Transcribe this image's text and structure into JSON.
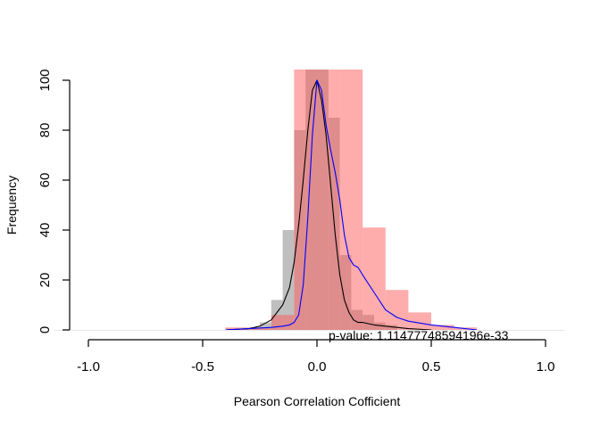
{
  "chart_data": {
    "type": "histogram",
    "title": "",
    "xlabel": "Pearson Correlation Cofficient",
    "ylabel": "Frequency",
    "xlim": [
      -1.0,
      1.0
    ],
    "ylim": [
      0,
      100
    ],
    "x_ticks": [
      "-1.0",
      "-0.5",
      "0.0",
      "0.5",
      "1.0"
    ],
    "y_ticks": [
      "0",
      "20",
      "40",
      "60",
      "80",
      "100"
    ],
    "grid": false,
    "annotation": "p-value: 1.11477748594196e-33",
    "series": [
      {
        "color": "#bebebe",
        "bin_width": 0.05,
        "bins": [
          {
            "start": -0.4,
            "count": 0.5
          },
          {
            "start": -0.35,
            "count": 0.5
          },
          {
            "start": -0.3,
            "count": 0.5
          },
          {
            "start": -0.25,
            "count": 3
          },
          {
            "start": -0.2,
            "count": 12
          },
          {
            "start": -0.15,
            "count": 40
          },
          {
            "start": -0.1,
            "count": 80
          },
          {
            "start": -0.05,
            "count": 106
          },
          {
            "start": 0.0,
            "count": 108
          },
          {
            "start": 0.05,
            "count": 85
          },
          {
            "start": 0.1,
            "count": 30
          },
          {
            "start": 0.15,
            "count": 8
          },
          {
            "start": 0.2,
            "count": 6
          },
          {
            "start": 0.25,
            "count": 3
          },
          {
            "start": 0.3,
            "count": 2
          }
        ]
      },
      {
        "color": "#ff5a5a",
        "bin_width": 0.1,
        "bins": [
          {
            "start": -0.4,
            "count": 1
          },
          {
            "start": -0.3,
            "count": 1
          },
          {
            "start": -0.2,
            "count": 6
          },
          {
            "start": -0.1,
            "count": 105
          },
          {
            "start": 0.0,
            "count": 105
          },
          {
            "start": 0.1,
            "count": 105
          },
          {
            "start": 0.2,
            "count": 41
          },
          {
            "start": 0.3,
            "count": 16
          },
          {
            "start": 0.4,
            "count": 7
          },
          {
            "start": 0.5,
            "count": 2
          },
          {
            "start": 0.6,
            "count": 1
          }
        ]
      }
    ],
    "density_curves": [
      {
        "color": "#000000",
        "x": [
          -0.4,
          -0.3,
          -0.25,
          -0.2,
          -0.15,
          -0.12,
          -0.1,
          -0.08,
          -0.06,
          -0.04,
          -0.02,
          0.0,
          0.02,
          0.04,
          0.06,
          0.08,
          0.1,
          0.12,
          0.14,
          0.16,
          0.18,
          0.2,
          0.25,
          0.3,
          0.35,
          0.4,
          0.5
        ],
        "y": [
          0,
          0.5,
          1.5,
          4,
          10,
          17,
          27,
          42,
          60,
          80,
          96,
          100,
          92,
          78,
          58,
          38,
          22,
          12,
          7,
          4,
          3,
          3,
          2,
          1.5,
          1,
          0.5,
          0
        ]
      },
      {
        "color": "#0000ff",
        "x": [
          -0.4,
          -0.3,
          -0.2,
          -0.15,
          -0.12,
          -0.1,
          -0.08,
          -0.06,
          -0.04,
          -0.02,
          0.0,
          0.02,
          0.04,
          0.06,
          0.08,
          0.1,
          0.12,
          0.14,
          0.16,
          0.18,
          0.2,
          0.25,
          0.3,
          0.35,
          0.4,
          0.5,
          0.6,
          0.7
        ],
        "y": [
          0,
          0.5,
          1,
          1.5,
          2,
          3,
          6,
          18,
          45,
          78,
          100,
          96,
          82,
          72,
          63,
          52,
          38,
          29,
          26,
          25,
          22,
          15,
          8,
          5,
          3.5,
          2,
          1,
          0
        ]
      }
    ]
  }
}
